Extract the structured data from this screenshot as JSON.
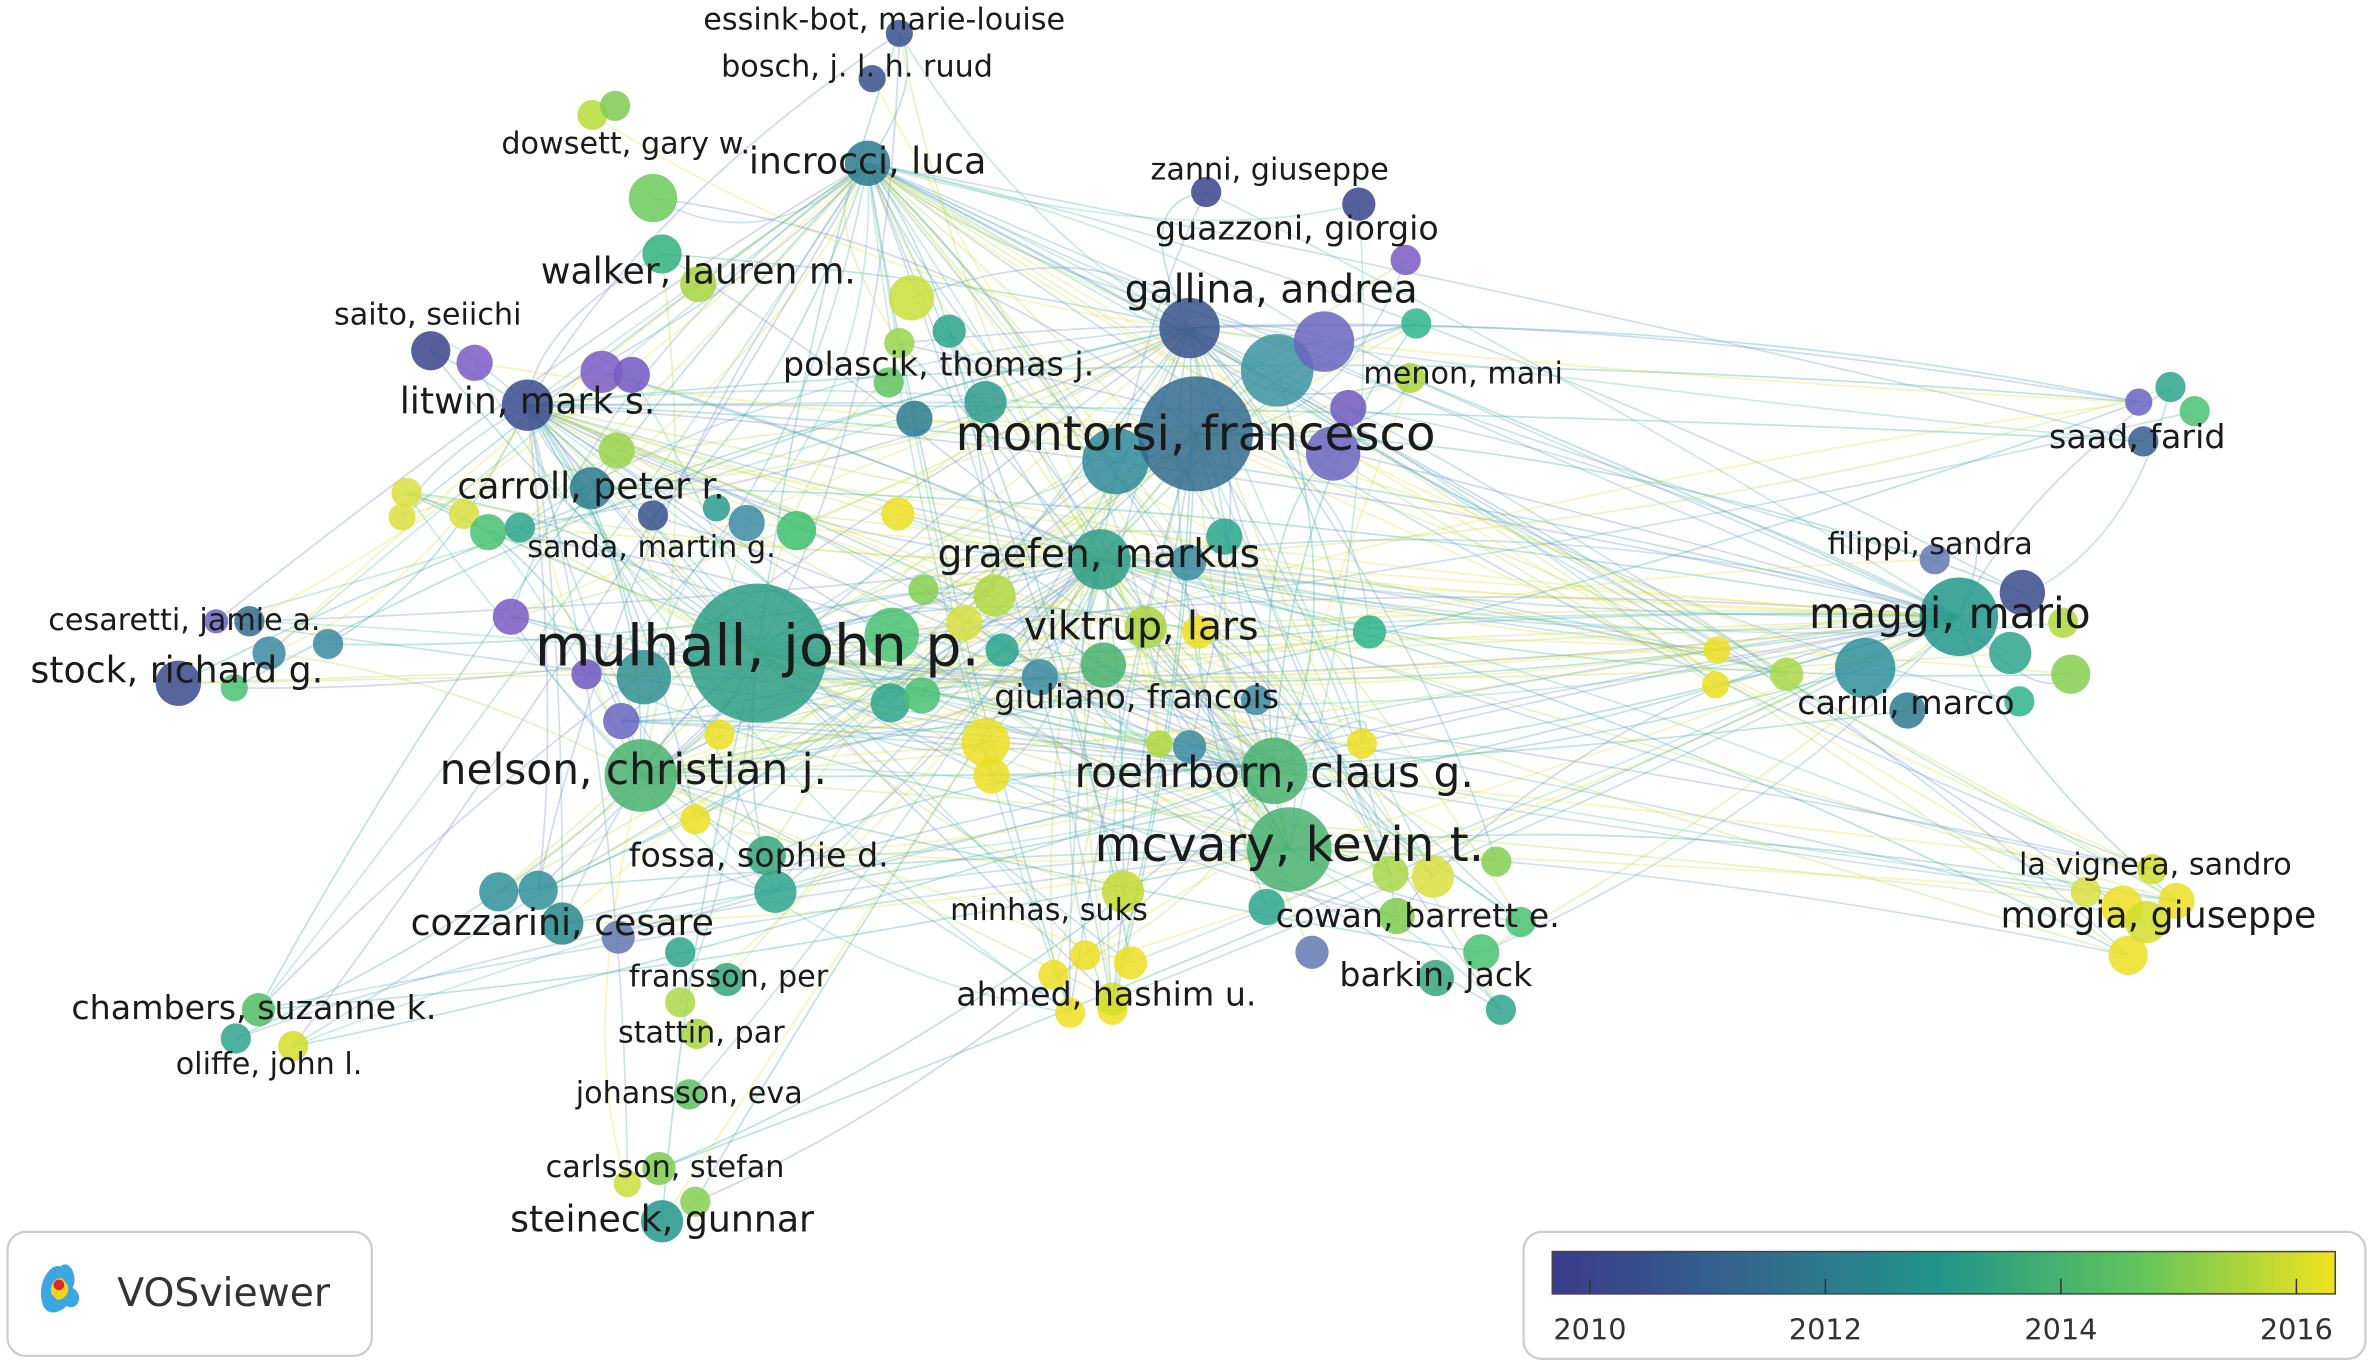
{
  "nodes": [
    {
      "label": "essink-bot, marie-louise",
      "year": 2010.5
    },
    {
      "label": "bosch, j. l. h. ruud",
      "year": 2010.5
    },
    {
      "label": "dowsett, gary w.",
      "year": 2015
    },
    {
      "label": "incrocci, luca",
      "year": 2012
    },
    {
      "label": "zanni, giuseppe",
      "year": 2010
    },
    {
      "label": "guazzoni, giorgio",
      "year": 2010
    },
    {
      "label": "walker, lauren m.",
      "year": 2015.5
    },
    {
      "label": "gallina, andrea",
      "year": 2010.5
    },
    {
      "label": "saito, seiichi",
      "year": 2010
    },
    {
      "label": "polascik, thomas j.",
      "year": 2012
    },
    {
      "label": "menon, mani",
      "year": 2015.5
    },
    {
      "label": "litwin, mark s.",
      "year": 2010.3
    },
    {
      "label": "montorsi, francesco",
      "year": 2011.5
    },
    {
      "label": "saad, farid",
      "year": 2011
    },
    {
      "label": "carroll, peter r.",
      "year": 2012
    },
    {
      "label": "sanda, martin g.",
      "year": 2010.5
    },
    {
      "label": "filippi, sandra",
      "year": 2010.3
    },
    {
      "label": "graefen, markus",
      "year": 2013.3
    },
    {
      "label": "maggi, mario",
      "year": 2013
    },
    {
      "label": "cesaretti, jamie a.",
      "year": 2011.5
    },
    {
      "label": "viktrup, lars",
      "year": 2015.5
    },
    {
      "label": "mulhall, john p.",
      "year": 2013.3
    },
    {
      "label": "stock, richard g.",
      "year": 2010.3
    },
    {
      "label": "giuliano, francois",
      "year": 2014
    },
    {
      "label": "carini, marco",
      "year": 2012
    },
    {
      "label": "nelson, christian j.",
      "year": 2014
    },
    {
      "label": "roehrborn, claus g.",
      "year": 2014
    },
    {
      "label": "mcvary, kevin t.",
      "year": 2014
    },
    {
      "label": "fossa, sophie d.",
      "year": 2013.5
    },
    {
      "label": "la vignera, sandro",
      "year": 2016
    },
    {
      "label": "minhas, suks",
      "year": 2015.8
    },
    {
      "label": "cowan, barrett e.",
      "year": 2015
    },
    {
      "label": "morgia, giuseppe",
      "year": 2016
    },
    {
      "label": "cozzarini, cesare",
      "year": 2012.5
    },
    {
      "label": "fransson, per",
      "year": 2013.5
    },
    {
      "label": "barkin, jack",
      "year": 2013.5
    },
    {
      "label": "ahmed, hashim u.",
      "year": 2016
    },
    {
      "label": "chambers, suzanne k.",
      "year": 2014.3
    },
    {
      "label": "stattin, par",
      "year": 2015.5
    },
    {
      "label": "oliffe, john l.",
      "year": 2016
    },
    {
      "label": "johansson, eva",
      "year": 2014.5
    },
    {
      "label": "carlsson, stefan",
      "year": 2015
    },
    {
      "label": "steineck, gunnar",
      "year": 2013
    }
  ],
  "legend": {
    "range": [
      2009.68,
      2016.33
    ],
    "ticks": [
      2010,
      2012,
      2014,
      2016
    ]
  },
  "logo": "VOSviewer"
}
